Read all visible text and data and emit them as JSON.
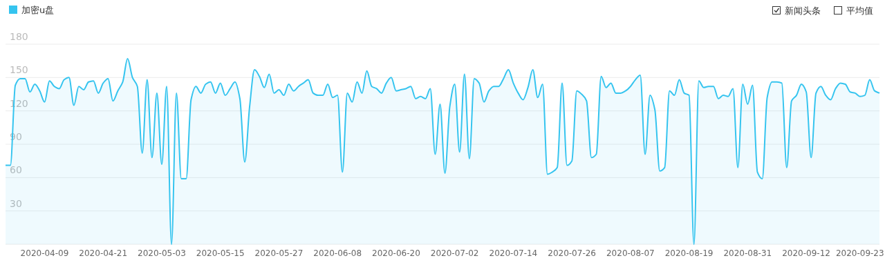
{
  "chart_data": {
    "type": "area",
    "x": [
      "2020-04-01",
      "2020-04-02",
      "2020-04-03",
      "2020-04-04",
      "2020-04-05",
      "2020-04-06",
      "2020-04-07",
      "2020-04-08",
      "2020-04-09",
      "2020-04-10",
      "2020-04-11",
      "2020-04-12",
      "2020-04-13",
      "2020-04-14",
      "2020-04-15",
      "2020-04-16",
      "2020-04-17",
      "2020-04-18",
      "2020-04-19",
      "2020-04-20",
      "2020-04-21",
      "2020-04-22",
      "2020-04-23",
      "2020-04-24",
      "2020-04-25",
      "2020-04-26",
      "2020-04-27",
      "2020-04-28",
      "2020-04-29",
      "2020-04-30",
      "2020-05-01",
      "2020-05-02",
      "2020-05-03",
      "2020-05-04",
      "2020-05-05",
      "2020-05-06",
      "2020-05-07",
      "2020-05-08",
      "2020-05-09",
      "2020-05-10",
      "2020-05-11",
      "2020-05-12",
      "2020-05-13",
      "2020-05-14",
      "2020-05-15",
      "2020-05-16",
      "2020-05-17",
      "2020-05-18",
      "2020-05-19",
      "2020-05-20",
      "2020-05-21",
      "2020-05-22",
      "2020-05-23",
      "2020-05-24",
      "2020-05-25",
      "2020-05-26",
      "2020-05-27",
      "2020-05-28",
      "2020-05-29",
      "2020-05-30",
      "2020-05-31",
      "2020-06-01",
      "2020-06-02",
      "2020-06-03",
      "2020-06-04",
      "2020-06-05",
      "2020-06-06",
      "2020-06-07",
      "2020-06-08",
      "2020-06-09",
      "2020-06-10",
      "2020-06-11",
      "2020-06-12",
      "2020-06-13",
      "2020-06-14",
      "2020-06-15",
      "2020-06-16",
      "2020-06-17",
      "2020-06-18",
      "2020-06-19",
      "2020-06-20",
      "2020-06-21",
      "2020-06-22",
      "2020-06-23",
      "2020-06-24",
      "2020-06-25",
      "2020-06-26",
      "2020-06-27",
      "2020-06-28",
      "2020-06-29",
      "2020-06-30",
      "2020-07-01",
      "2020-07-02",
      "2020-07-03",
      "2020-07-04",
      "2020-07-05",
      "2020-07-06",
      "2020-07-07",
      "2020-07-08",
      "2020-07-09",
      "2020-07-10",
      "2020-07-11",
      "2020-07-12",
      "2020-07-13",
      "2020-07-14",
      "2020-07-15",
      "2020-07-16",
      "2020-07-17",
      "2020-07-18",
      "2020-07-19",
      "2020-07-20",
      "2020-07-21",
      "2020-07-22",
      "2020-07-23",
      "2020-07-24",
      "2020-07-25",
      "2020-07-26",
      "2020-07-27",
      "2020-07-28",
      "2020-07-29",
      "2020-07-30",
      "2020-07-31",
      "2020-08-01",
      "2020-08-02",
      "2020-08-03",
      "2020-08-04",
      "2020-08-05",
      "2020-08-06",
      "2020-08-07",
      "2020-08-08",
      "2020-08-09",
      "2020-08-10",
      "2020-08-11",
      "2020-08-12",
      "2020-08-13",
      "2020-08-14",
      "2020-08-15",
      "2020-08-16",
      "2020-08-17",
      "2020-08-18",
      "2020-08-19",
      "2020-08-20",
      "2020-08-21",
      "2020-08-22",
      "2020-08-23",
      "2020-08-24",
      "2020-08-25",
      "2020-08-26",
      "2020-08-27",
      "2020-08-28",
      "2020-08-29",
      "2020-08-30",
      "2020-08-31",
      "2020-09-01",
      "2020-09-02",
      "2020-09-03",
      "2020-09-04",
      "2020-09-05",
      "2020-09-06",
      "2020-09-07",
      "2020-09-08",
      "2020-09-09",
      "2020-09-10",
      "2020-09-11",
      "2020-09-12",
      "2020-09-13",
      "2020-09-14",
      "2020-09-15",
      "2020-09-16",
      "2020-09-17",
      "2020-09-18",
      "2020-09-19",
      "2020-09-20",
      "2020-09-21",
      "2020-09-22",
      "2020-09-23",
      "2020-09-24",
      "2020-09-25",
      "2020-09-26",
      "2020-09-27"
    ],
    "series": [
      {
        "name": "加密u盘",
        "color": "#35c4ef",
        "values": [
          71,
          71,
          143,
          149,
          149,
          137,
          144,
          138,
          128,
          147,
          142,
          140,
          148,
          150,
          125,
          142,
          139,
          146,
          147,
          136,
          145,
          149,
          129,
          138,
          146,
          167,
          150,
          142,
          82,
          148,
          78,
          136,
          72,
          142,
          0,
          136,
          59,
          59,
          130,
          142,
          136,
          144,
          146,
          136,
          145,
          134,
          140,
          146,
          131,
          74,
          124,
          157,
          151,
          141,
          153,
          136,
          139,
          134,
          144,
          138,
          142,
          145,
          148,
          136,
          134,
          134,
          144,
          132,
          134,
          65,
          136,
          128,
          146,
          136,
          156,
          142,
          140,
          136,
          145,
          150,
          138,
          139,
          140,
          142,
          131,
          133,
          131,
          140,
          81,
          126,
          64,
          124,
          144,
          83,
          153,
          77,
          149,
          145,
          128,
          138,
          142,
          142,
          149,
          157,
          145,
          136,
          130,
          141,
          157,
          132,
          144,
          63,
          65,
          69,
          145,
          71,
          75,
          138,
          135,
          129,
          78,
          81,
          151,
          141,
          145,
          136,
          136,
          138,
          142,
          148,
          152,
          81,
          134,
          121,
          66,
          69,
          138,
          134,
          148,
          136,
          134,
          0,
          147,
          141,
          142,
          142,
          131,
          134,
          133,
          140,
          69,
          144,
          126,
          143,
          65,
          59,
          132,
          146,
          146,
          145,
          69,
          129,
          134,
          144,
          137,
          78,
          136,
          142,
          134,
          130,
          140,
          145,
          144,
          137,
          136,
          133,
          134,
          148,
          138,
          136
        ]
      }
    ],
    "xlim": [
      "2020-04-01",
      "2020-09-27"
    ],
    "xticks": [
      {
        "value": "2020-04-09",
        "label": "2020-04-09"
      },
      {
        "value": "2020-04-21",
        "label": "2020-04-21"
      },
      {
        "value": "2020-05-03",
        "label": "2020-05-03"
      },
      {
        "value": "2020-05-15",
        "label": "2020-05-15"
      },
      {
        "value": "2020-05-27",
        "label": "2020-05-27"
      },
      {
        "value": "2020-06-08",
        "label": "2020-06-08"
      },
      {
        "value": "2020-06-20",
        "label": "2020-06-20"
      },
      {
        "value": "2020-07-02",
        "label": "2020-07-02"
      },
      {
        "value": "2020-07-14",
        "label": "2020-07-14"
      },
      {
        "value": "2020-07-26",
        "label": "2020-07-26"
      },
      {
        "value": "2020-08-07",
        "label": "2020-08-07"
      },
      {
        "value": "2020-08-19",
        "label": "2020-08-19"
      },
      {
        "value": "2020-08-31",
        "label": "2020-08-31"
      },
      {
        "value": "2020-09-12",
        "label": "2020-09-12"
      },
      {
        "value": "2020-09-23",
        "label": "2020-09-23"
      }
    ],
    "ylim": [
      0,
      180
    ],
    "yticks": [
      {
        "value": 0,
        "label": null
      },
      30,
      60,
      90,
      120,
      150,
      180
    ],
    "grid": "y",
    "legend": "top left",
    "annotations": [
      "新闻头条",
      "平均值"
    ]
  }
}
